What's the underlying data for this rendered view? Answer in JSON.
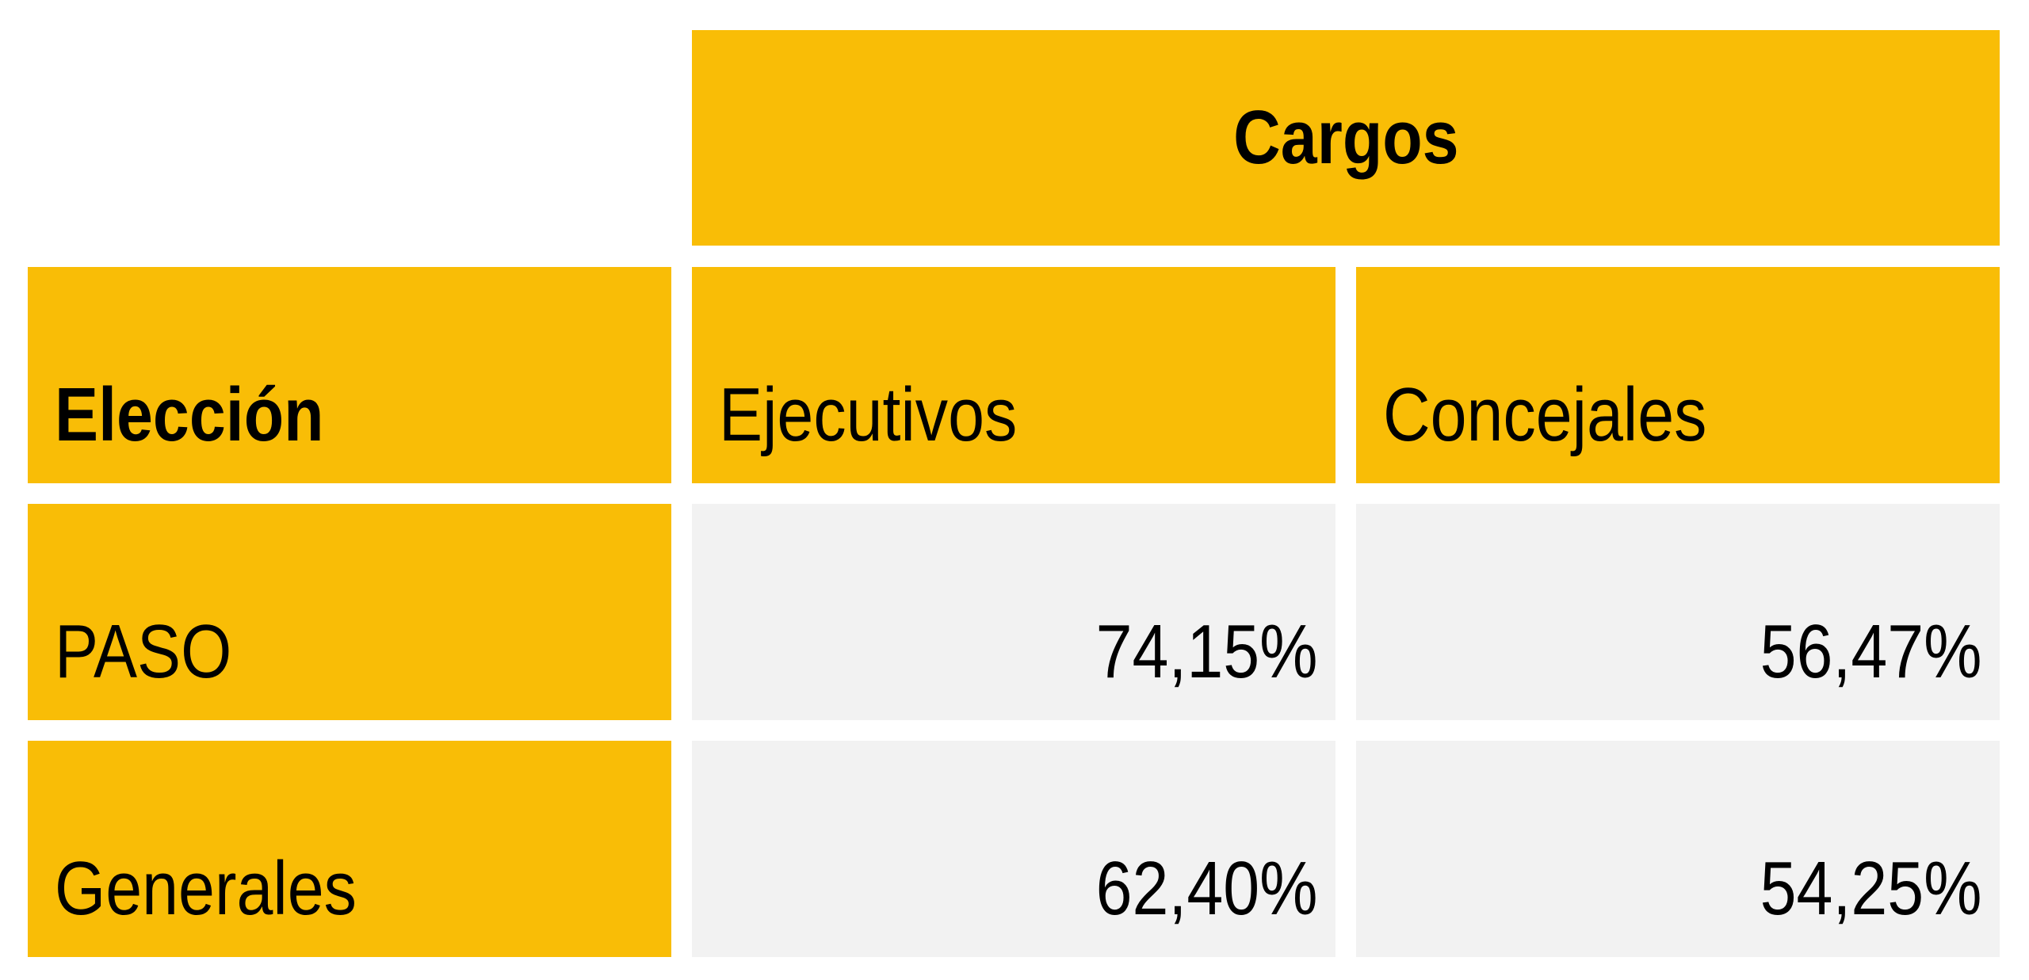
{
  "chart_data": {
    "type": "table",
    "group_header": "Cargos",
    "row_header": "Elección",
    "columns": [
      "Ejecutivos",
      "Concejales"
    ],
    "rows": [
      {
        "label": "PASO",
        "values": [
          "74,15%",
          "56,47%"
        ]
      },
      {
        "label": "Generales",
        "values": [
          "62,40%",
          "54,25%"
        ]
      }
    ]
  },
  "colors": {
    "header_fill": "#f9bd06",
    "value_fill": "#f2f2f2",
    "text": "#000000"
  }
}
